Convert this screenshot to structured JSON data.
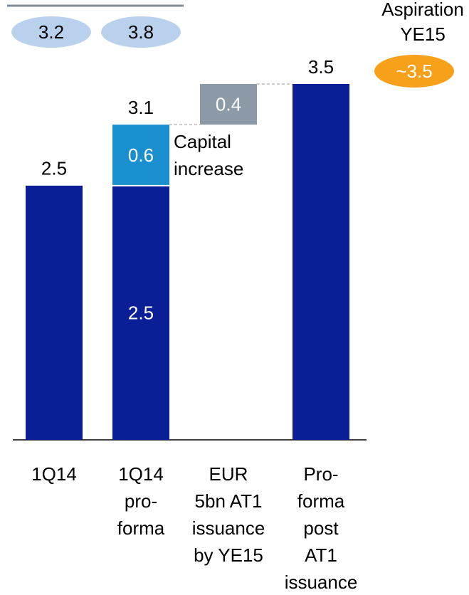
{
  "chart_data": {
    "type": "waterfall",
    "ylim": [
      0,
      3.5
    ],
    "bars": [
      {
        "category": [
          "1Q14"
        ],
        "segments": [
          {
            "value": 2.5,
            "color": "#0a1e96",
            "labeled": false
          }
        ],
        "total": 2.5
      },
      {
        "category": [
          "1Q14",
          "pro-",
          "forma"
        ],
        "segments": [
          {
            "value": 2.5,
            "color": "#0a1e96",
            "labeled": true
          },
          {
            "value": 0.6,
            "color": "#1a8fd0",
            "labeled": true
          }
        ],
        "total": 3.1
      },
      {
        "category": [
          "EUR",
          "5bn AT1",
          "issuance",
          "by YE15"
        ],
        "segments": [
          {
            "value": 0.4,
            "color": "#8c9aa8",
            "labeled": true
          }
        ],
        "floating": true
      },
      {
        "category": [
          "Pro-",
          "forma",
          "post",
          "AT1",
          "issuance"
        ],
        "segments": [
          {
            "value": 3.5,
            "color": "#0a1e96",
            "labeled": false
          }
        ],
        "total": 3.5
      }
    ],
    "annotations": {
      "capital_increase": [
        "Capital",
        "increase"
      ],
      "top_badges": {
        "color": "#b9d1ec",
        "labels": [
          "3.2",
          "3.8"
        ]
      },
      "aspiration": {
        "title": [
          "Aspiration",
          "YE15"
        ],
        "badge": "~3.5",
        "color": "#f7a11a"
      }
    }
  }
}
